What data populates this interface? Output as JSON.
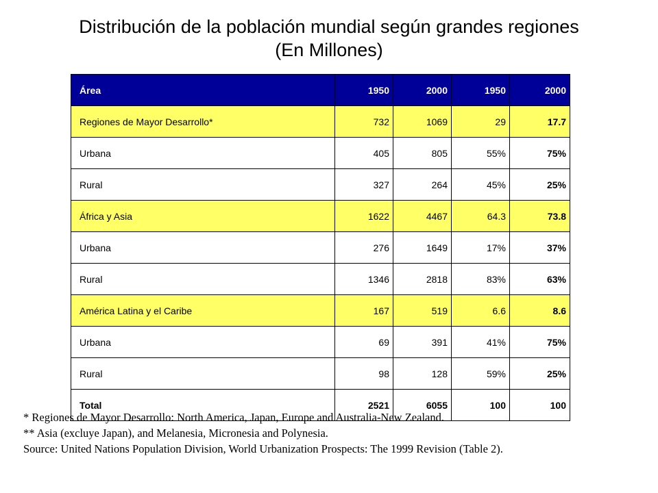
{
  "title": {
    "line1": "Distribución de la población mundial según grandes regiones",
    "line2": "(En Millones)"
  },
  "table": {
    "headers": [
      "Área",
      "1950",
      "2000",
      "1950",
      "2000"
    ],
    "rows": [
      {
        "kind": "region",
        "cells": [
          "Regiones de Mayor Desarrollo*",
          "732",
          "1069",
          "29",
          "17.7"
        ]
      },
      {
        "kind": "sub",
        "cells": [
          "Urbana",
          "405",
          "805",
          "55%",
          "75%"
        ]
      },
      {
        "kind": "sub",
        "cells": [
          "Rural",
          "327",
          "264",
          "45%",
          "25%"
        ]
      },
      {
        "kind": "region",
        "cells": [
          "África y Asia",
          "1622",
          "4467",
          "64.3",
          "73.8"
        ]
      },
      {
        "kind": "sub",
        "cells": [
          "Urbana",
          "276",
          "1649",
          "17%",
          "37%"
        ]
      },
      {
        "kind": "sub",
        "cells": [
          "Rural",
          "1346",
          "2818",
          "83%",
          "63%"
        ]
      },
      {
        "kind": "region",
        "cells": [
          "América Latina y el Caribe",
          "167",
          "519",
          "6.6",
          "8.6"
        ]
      },
      {
        "kind": "sub",
        "cells": [
          "Urbana",
          "69",
          "391",
          "41%",
          "75%"
        ]
      },
      {
        "kind": "sub",
        "cells": [
          "Rural",
          "98",
          "128",
          "59%",
          "25%"
        ]
      },
      {
        "kind": "total",
        "cells": [
          "Total",
          "2521",
          "6055",
          "100",
          "100"
        ]
      }
    ],
    "header_color": "#000099",
    "region_color": "#ffff66"
  },
  "notes": [
    "*  Regiones de Mayor Desarrollo: North America, Japan, Europe and Australia-New Zealand.",
    "** Asia (excluye Japan), and Melanesia, Micronesia and Polynesia.",
    "Source: United Nations Population Division, World Urbanization Prospects: The 1999 Revision (Table 2)."
  ]
}
